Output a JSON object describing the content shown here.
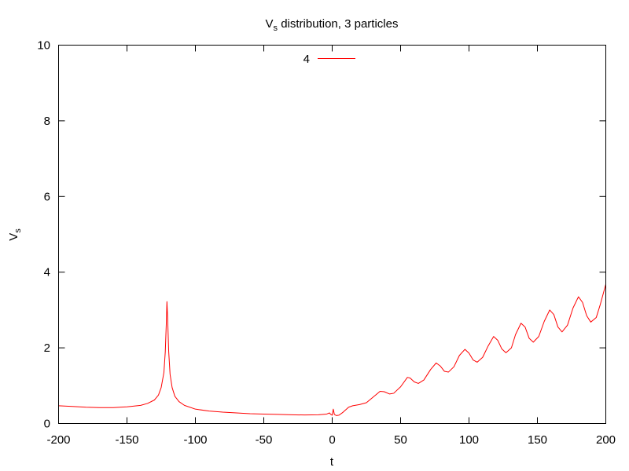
{
  "chart_data": {
    "type": "line",
    "title": {
      "main": "V",
      "sub": "s",
      "rest": " distribution, 3 particles"
    },
    "xlabel": "t",
    "ylabel": {
      "main": "V",
      "sub": "s"
    },
    "xlim": [
      -200,
      200
    ],
    "ylim": [
      0,
      10
    ],
    "xticks": [
      -200,
      -150,
      -100,
      -50,
      0,
      50,
      100,
      150,
      200
    ],
    "xtick_labels": [
      "-200",
      "-150",
      "-100",
      "-50",
      "0",
      "50",
      "100",
      "150",
      "200"
    ],
    "yticks": [
      0,
      2,
      4,
      6,
      8,
      10
    ],
    "ytick_labels": [
      "0",
      "2",
      "4",
      "6",
      "8",
      "10"
    ],
    "grid": false,
    "legend": "top-center",
    "series": [
      {
        "name": "4",
        "color": "#ff0000",
        "points": [
          [
            -200,
            0.47
          ],
          [
            -190,
            0.45
          ],
          [
            -180,
            0.43
          ],
          [
            -170,
            0.42
          ],
          [
            -160,
            0.42
          ],
          [
            -150,
            0.44
          ],
          [
            -140,
            0.48
          ],
          [
            -135,
            0.53
          ],
          [
            -130,
            0.62
          ],
          [
            -127,
            0.75
          ],
          [
            -125,
            0.95
          ],
          [
            -123,
            1.35
          ],
          [
            -122,
            1.9
          ],
          [
            -121.2,
            2.7
          ],
          [
            -120.8,
            3.22
          ],
          [
            -120.3,
            2.8
          ],
          [
            -119.5,
            1.9
          ],
          [
            -118.5,
            1.3
          ],
          [
            -117,
            0.95
          ],
          [
            -115,
            0.72
          ],
          [
            -112,
            0.58
          ],
          [
            -108,
            0.48
          ],
          [
            -100,
            0.38
          ],
          [
            -90,
            0.33
          ],
          [
            -80,
            0.3
          ],
          [
            -70,
            0.28
          ],
          [
            -60,
            0.26
          ],
          [
            -50,
            0.25
          ],
          [
            -40,
            0.24
          ],
          [
            -30,
            0.23
          ],
          [
            -20,
            0.225
          ],
          [
            -10,
            0.23
          ],
          [
            -4,
            0.25
          ],
          [
            -2,
            0.28
          ],
          [
            -1,
            0.24
          ],
          [
            0,
            0.22
          ],
          [
            0.8,
            0.38
          ],
          [
            1.6,
            0.24
          ],
          [
            3,
            0.21
          ],
          [
            5,
            0.22
          ],
          [
            8,
            0.3
          ],
          [
            12,
            0.43
          ],
          [
            15,
            0.47
          ],
          [
            20,
            0.5
          ],
          [
            25,
            0.55
          ],
          [
            30,
            0.7
          ],
          [
            35,
            0.85
          ],
          [
            38,
            0.84
          ],
          [
            42,
            0.78
          ],
          [
            45,
            0.8
          ],
          [
            50,
            0.97
          ],
          [
            55,
            1.22
          ],
          [
            57,
            1.2
          ],
          [
            60,
            1.1
          ],
          [
            63,
            1.06
          ],
          [
            67,
            1.15
          ],
          [
            72,
            1.43
          ],
          [
            76,
            1.6
          ],
          [
            79,
            1.52
          ],
          [
            82,
            1.38
          ],
          [
            85,
            1.36
          ],
          [
            89,
            1.5
          ],
          [
            93,
            1.8
          ],
          [
            97,
            1.96
          ],
          [
            100,
            1.86
          ],
          [
            103,
            1.68
          ],
          [
            106,
            1.62
          ],
          [
            110,
            1.75
          ],
          [
            114,
            2.05
          ],
          [
            118,
            2.3
          ],
          [
            121,
            2.2
          ],
          [
            124,
            1.97
          ],
          [
            127,
            1.87
          ],
          [
            131,
            2.0
          ],
          [
            134,
            2.35
          ],
          [
            138,
            2.65
          ],
          [
            141,
            2.55
          ],
          [
            144,
            2.25
          ],
          [
            147,
            2.15
          ],
          [
            151,
            2.3
          ],
          [
            155,
            2.7
          ],
          [
            159,
            3.0
          ],
          [
            162,
            2.88
          ],
          [
            165,
            2.55
          ],
          [
            168,
            2.42
          ],
          [
            172,
            2.6
          ],
          [
            176,
            3.05
          ],
          [
            180,
            3.35
          ],
          [
            183,
            3.2
          ],
          [
            186,
            2.85
          ],
          [
            189,
            2.68
          ],
          [
            193,
            2.8
          ],
          [
            196,
            3.15
          ],
          [
            200,
            3.68
          ]
        ]
      }
    ]
  }
}
